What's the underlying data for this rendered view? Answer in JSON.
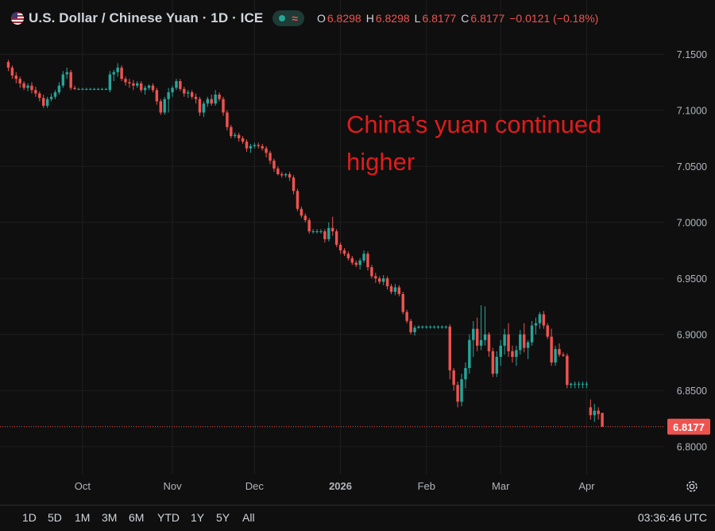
{
  "header": {
    "symbol": "U.S. Dollar / Chinese Yuan · 1D · ICE",
    "icon": "us-flag-icon",
    "ohlc": [
      {
        "k": "O",
        "v": "6.8298"
      },
      {
        "k": "H",
        "v": "6.8298"
      },
      {
        "k": "L",
        "v": "6.8177"
      },
      {
        "k": "C",
        "v": "6.8177"
      }
    ],
    "change": "−0.0121 (−0.18%)"
  },
  "colors": {
    "up": "#26a69a",
    "down": "#ef5350",
    "annotation": "#e21b1b",
    "background": "#0f0f0f",
    "grid": "#1f1f1f"
  },
  "footer": {
    "ranges": [
      "1D",
      "5D",
      "1M",
      "3M",
      "6M",
      "YTD",
      "1Y",
      "5Y",
      "All"
    ],
    "clock": "03:36:46 UTC"
  },
  "chart_data": {
    "type": "candlestick",
    "annotation": "China's yuan continued higher",
    "last_price_label": "6.8177",
    "yticks": [
      "7.1500",
      "7.1000",
      "7.0500",
      "7.0000",
      "6.9500",
      "6.9000",
      "6.8500",
      "6.8000"
    ],
    "ylim": [
      6.775,
      7.17
    ],
    "xticks": [
      {
        "label": "Oct",
        "idx": 19
      },
      {
        "label": "Nov",
        "idx": 42
      },
      {
        "label": "Dec",
        "idx": 63
      },
      {
        "label": "2026",
        "idx": 85
      },
      {
        "label": "Feb",
        "idx": 107
      },
      {
        "label": "Mar",
        "idx": 126
      },
      {
        "label": "Apr",
        "idx": 148
      }
    ],
    "x_count": 160,
    "candles": [
      [
        0,
        7.143,
        7.145,
        7.135,
        7.138
      ],
      [
        1,
        7.138,
        7.14,
        7.128,
        7.131
      ],
      [
        2,
        7.131,
        7.134,
        7.124,
        7.128
      ],
      [
        3,
        7.128,
        7.13,
        7.12,
        7.124
      ],
      [
        4,
        7.124,
        7.126,
        7.118,
        7.12
      ],
      [
        5,
        7.12,
        7.124,
        7.117,
        7.122
      ],
      [
        6,
        7.122,
        7.125,
        7.115,
        7.118
      ],
      [
        7,
        7.118,
        7.121,
        7.112,
        7.115
      ],
      [
        8,
        7.115,
        7.117,
        7.108,
        7.111
      ],
      [
        9,
        7.111,
        7.114,
        7.102,
        7.104
      ],
      [
        10,
        7.104,
        7.112,
        7.102,
        7.11
      ],
      [
        11,
        7.11,
        7.115,
        7.108,
        7.112
      ],
      [
        12,
        7.112,
        7.118,
        7.11,
        7.116
      ],
      [
        13,
        7.116,
        7.125,
        7.114,
        7.122
      ],
      [
        14,
        7.122,
        7.135,
        7.12,
        7.132
      ],
      [
        15,
        7.132,
        7.138,
        7.128,
        7.134
      ],
      [
        16,
        7.134,
        7.136,
        7.118,
        7.12
      ],
      [
        17,
        7.12,
        7.122,
        7.118,
        7.119
      ],
      [
        18,
        7.119,
        7.12,
        7.118,
        7.119
      ],
      [
        19,
        7.119,
        7.12,
        7.118,
        7.119
      ],
      [
        20,
        7.119,
        7.12,
        7.118,
        7.119
      ],
      [
        21,
        7.119,
        7.12,
        7.118,
        7.119
      ],
      [
        22,
        7.119,
        7.12,
        7.118,
        7.119
      ],
      [
        23,
        7.119,
        7.12,
        7.118,
        7.119
      ],
      [
        24,
        7.119,
        7.12,
        7.118,
        7.119
      ],
      [
        25,
        7.119,
        7.12,
        7.118,
        7.119
      ],
      [
        26,
        7.118,
        7.135,
        7.116,
        7.132
      ],
      [
        27,
        7.132,
        7.136,
        7.126,
        7.134
      ],
      [
        28,
        7.134,
        7.142,
        7.13,
        7.138
      ],
      [
        29,
        7.138,
        7.14,
        7.126,
        7.128
      ],
      [
        30,
        7.128,
        7.13,
        7.122,
        7.125
      ],
      [
        31,
        7.125,
        7.128,
        7.12,
        7.124
      ],
      [
        32,
        7.124,
        7.127,
        7.118,
        7.122
      ],
      [
        33,
        7.122,
        7.126,
        7.12,
        7.124
      ],
      [
        34,
        7.124,
        7.126,
        7.116,
        7.118
      ],
      [
        35,
        7.118,
        7.122,
        7.114,
        7.12
      ],
      [
        36,
        7.12,
        7.123,
        7.118,
        7.122
      ],
      [
        37,
        7.122,
        7.124,
        7.116,
        7.118
      ],
      [
        38,
        7.118,
        7.12,
        7.105,
        7.108
      ],
      [
        39,
        7.108,
        7.11,
        7.096,
        7.098
      ],
      [
        40,
        7.098,
        7.112,
        7.096,
        7.11
      ],
      [
        41,
        7.11,
        7.12,
        7.098,
        7.116
      ],
      [
        42,
        7.116,
        7.122,
        7.112,
        7.12
      ],
      [
        43,
        7.12,
        7.128,
        7.118,
        7.126
      ],
      [
        44,
        7.126,
        7.128,
        7.117,
        7.119
      ],
      [
        45,
        7.119,
        7.121,
        7.112,
        7.115
      ],
      [
        46,
        7.115,
        7.118,
        7.111,
        7.116
      ],
      [
        47,
        7.116,
        7.118,
        7.11,
        7.112
      ],
      [
        48,
        7.112,
        7.115,
        7.106,
        7.11
      ],
      [
        49,
        7.11,
        7.112,
        7.095,
        7.098
      ],
      [
        50,
        7.098,
        7.108,
        7.094,
        7.106
      ],
      [
        51,
        7.106,
        7.112,
        7.103,
        7.11
      ],
      [
        52,
        7.11,
        7.114,
        7.104,
        7.106
      ],
      [
        53,
        7.106,
        7.118,
        7.104,
        7.114
      ],
      [
        54,
        7.114,
        7.116,
        7.108,
        7.11
      ],
      [
        55,
        7.11,
        7.112,
        7.095,
        7.098
      ],
      [
        56,
        7.098,
        7.1,
        7.082,
        7.085
      ],
      [
        57,
        7.085,
        7.087,
        7.075,
        7.077
      ],
      [
        58,
        7.077,
        7.08,
        7.075,
        7.078
      ],
      [
        59,
        7.078,
        7.08,
        7.072,
        7.075
      ],
      [
        60,
        7.075,
        7.077,
        7.07,
        7.072
      ],
      [
        61,
        7.072,
        7.074,
        7.063,
        7.066
      ],
      [
        62,
        7.066,
        7.07,
        7.062,
        7.068
      ],
      [
        63,
        7.068,
        7.071,
        7.066,
        7.069
      ],
      [
        64,
        7.069,
        7.071,
        7.066,
        7.068
      ],
      [
        65,
        7.068,
        7.07,
        7.064,
        7.066
      ],
      [
        66,
        7.066,
        7.068,
        7.058,
        7.062
      ],
      [
        67,
        7.062,
        7.064,
        7.052,
        7.055
      ],
      [
        68,
        7.055,
        7.057,
        7.045,
        7.048
      ],
      [
        69,
        7.048,
        7.05,
        7.042,
        7.043
      ],
      [
        70,
        7.043,
        7.045,
        7.04,
        7.042
      ],
      [
        71,
        7.042,
        7.044,
        7.04,
        7.043
      ],
      [
        72,
        7.043,
        7.045,
        7.037,
        7.04
      ],
      [
        73,
        7.04,
        7.042,
        7.025,
        7.028
      ],
      [
        74,
        7.028,
        7.03,
        7.01,
        7.012
      ],
      [
        75,
        7.012,
        7.014,
        7.004,
        7.006
      ],
      [
        76,
        7.006,
        7.008,
        7.0,
        7.002
      ],
      [
        77,
        7.002,
        7.004,
        6.99,
        6.992
      ],
      [
        78,
        6.992,
        6.994,
        6.99,
        6.992
      ],
      [
        79,
        6.992,
        6.994,
        6.99,
        6.992
      ],
      [
        80,
        6.992,
        6.994,
        6.99,
        6.992
      ],
      [
        81,
        6.992,
        6.994,
        6.982,
        6.985
      ],
      [
        82,
        6.985,
        7.0,
        6.983,
        6.995
      ],
      [
        83,
        6.995,
        7.005,
        6.988,
        6.992
      ],
      [
        84,
        6.992,
        6.994,
        6.978,
        6.98
      ],
      [
        85,
        6.98,
        6.982,
        6.972,
        6.975
      ],
      [
        86,
        6.975,
        6.977,
        6.97,
        6.972
      ],
      [
        87,
        6.972,
        6.974,
        6.966,
        6.968
      ],
      [
        88,
        6.968,
        6.97,
        6.962,
        6.964
      ],
      [
        89,
        6.964,
        6.966,
        6.96,
        6.962
      ],
      [
        90,
        6.962,
        6.968,
        6.958,
        6.966
      ],
      [
        91,
        6.966,
        6.975,
        6.964,
        6.972
      ],
      [
        92,
        6.972,
        6.974,
        6.957,
        6.96
      ],
      [
        93,
        6.96,
        6.962,
        6.95,
        6.952
      ],
      [
        94,
        6.952,
        6.955,
        6.946,
        6.95
      ],
      [
        95,
        6.95,
        6.952,
        6.945,
        6.947
      ],
      [
        96,
        6.947,
        6.953,
        6.944,
        6.95
      ],
      [
        97,
        6.95,
        6.952,
        6.94,
        6.943
      ],
      [
        98,
        6.943,
        6.945,
        6.936,
        6.938
      ],
      [
        99,
        6.938,
        6.945,
        6.935,
        6.942
      ],
      [
        100,
        6.942,
        6.944,
        6.934,
        6.936
      ],
      [
        101,
        6.936,
        6.938,
        6.918,
        6.92
      ],
      [
        102,
        6.92,
        6.922,
        6.91,
        6.912
      ],
      [
        103,
        6.912,
        6.914,
        6.9,
        6.902
      ],
      [
        104,
        6.902,
        6.908,
        6.899,
        6.906
      ],
      [
        105,
        6.906,
        6.908,
        6.905,
        6.907
      ],
      [
        106,
        6.907,
        6.908,
        6.905,
        6.907
      ],
      [
        107,
        6.907,
        6.908,
        6.905,
        6.907
      ],
      [
        108,
        6.907,
        6.908,
        6.905,
        6.907
      ],
      [
        109,
        6.907,
        6.908,
        6.905,
        6.907
      ],
      [
        110,
        6.907,
        6.908,
        6.905,
        6.907
      ],
      [
        111,
        6.907,
        6.908,
        6.905,
        6.907
      ],
      [
        112,
        6.907,
        6.908,
        6.905,
        6.907
      ],
      [
        113,
        6.907,
        6.909,
        6.86,
        6.868
      ],
      [
        114,
        6.868,
        6.87,
        6.85,
        6.855
      ],
      [
        115,
        6.855,
        6.858,
        6.835,
        6.84
      ],
      [
        116,
        6.84,
        6.865,
        6.836,
        6.86
      ],
      [
        117,
        6.86,
        6.875,
        6.852,
        6.87
      ],
      [
        118,
        6.87,
        6.9,
        6.865,
        6.895
      ],
      [
        119,
        6.895,
        6.912,
        6.88,
        6.905
      ],
      [
        120,
        6.905,
        6.915,
        6.885,
        6.89
      ],
      [
        121,
        6.89,
        6.926,
        6.886,
        6.895
      ],
      [
        122,
        6.895,
        6.925,
        6.89,
        6.9
      ],
      [
        123,
        6.9,
        6.902,
        6.88,
        6.885
      ],
      [
        124,
        6.885,
        6.888,
        6.862,
        6.865
      ],
      [
        125,
        6.865,
        6.885,
        6.862,
        6.88
      ],
      [
        126,
        6.88,
        6.895,
        6.872,
        6.89
      ],
      [
        127,
        6.89,
        6.905,
        6.882,
        6.9
      ],
      [
        128,
        6.9,
        6.91,
        6.88,
        6.885
      ],
      [
        129,
        6.885,
        6.89,
        6.875,
        6.88
      ],
      [
        130,
        6.88,
        6.89,
        6.872,
        6.886
      ],
      [
        131,
        6.886,
        6.904,
        6.882,
        6.9
      ],
      [
        132,
        6.9,
        6.91,
        6.884,
        6.888
      ],
      [
        133,
        6.888,
        6.895,
        6.878,
        6.893
      ],
      [
        134,
        6.893,
        6.912,
        6.89,
        6.908
      ],
      [
        135,
        6.908,
        6.915,
        6.9,
        6.91
      ],
      [
        136,
        6.91,
        6.92,
        6.905,
        6.918
      ],
      [
        137,
        6.918,
        6.921,
        6.905,
        6.908
      ],
      [
        138,
        6.908,
        6.91,
        6.896,
        6.898
      ],
      [
        139,
        6.898,
        6.905,
        6.872,
        6.875
      ],
      [
        140,
        6.875,
        6.89,
        6.872,
        6.887
      ],
      [
        141,
        6.887,
        6.892,
        6.88,
        6.882
      ],
      [
        142,
        6.882,
        6.884,
        6.88,
        6.881
      ],
      [
        143,
        6.881,
        6.883,
        6.852,
        6.855
      ],
      [
        144,
        6.855,
        6.857,
        6.852,
        6.856
      ],
      [
        145,
        6.856,
        6.858,
        6.852,
        6.856
      ],
      [
        146,
        6.856,
        6.858,
        6.852,
        6.856
      ],
      [
        147,
        6.856,
        6.858,
        6.852,
        6.856
      ],
      [
        148,
        6.856,
        6.858,
        6.852,
        6.856
      ],
      [
        149,
        6.835,
        6.842,
        6.824,
        6.828
      ],
      [
        150,
        6.828,
        6.838,
        6.822,
        6.832
      ],
      [
        151,
        6.832,
        6.835,
        6.824,
        6.829
      ],
      [
        152,
        6.83,
        6.83,
        6.818,
        6.8177
      ]
    ]
  }
}
